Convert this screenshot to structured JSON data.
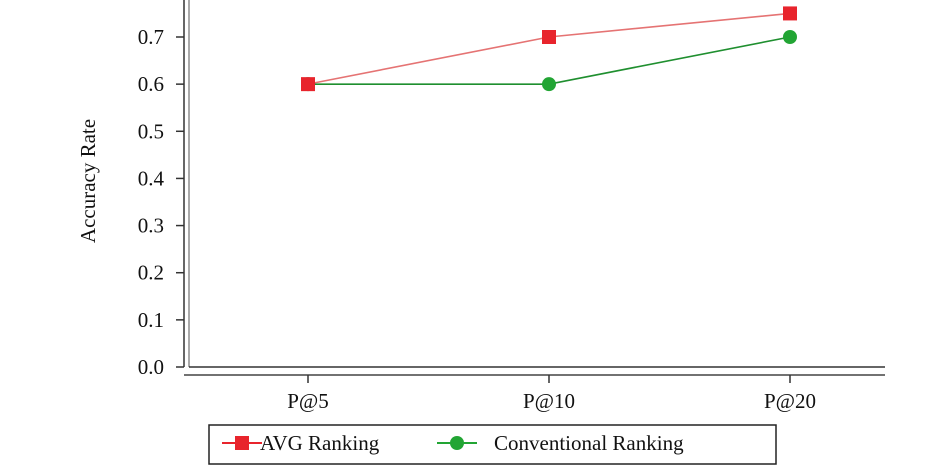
{
  "chart_data": {
    "type": "line",
    "categories": [
      "P@5",
      "P@10",
      "P@20"
    ],
    "series": [
      {
        "name": "AVG Ranking",
        "values": [
          0.6,
          0.7,
          0.75
        ],
        "color": "#e8242c",
        "line_color": "#e57373",
        "marker": "square"
      },
      {
        "name": "Conventional Ranking",
        "values": [
          0.6,
          0.6,
          0.7
        ],
        "color": "#22a534",
        "line_color": "#1f8f2f",
        "marker": "circle"
      }
    ],
    "ylabel": "Accuracy Rate",
    "xlabel": "",
    "title": "",
    "ylim": [
      0.0,
      0.75
    ],
    "yticks": [
      "0.0",
      "0.1",
      "0.2",
      "0.3",
      "0.4",
      "0.5",
      "0.6",
      "0.7"
    ],
    "grid": false,
    "legend_position": "bottom"
  }
}
